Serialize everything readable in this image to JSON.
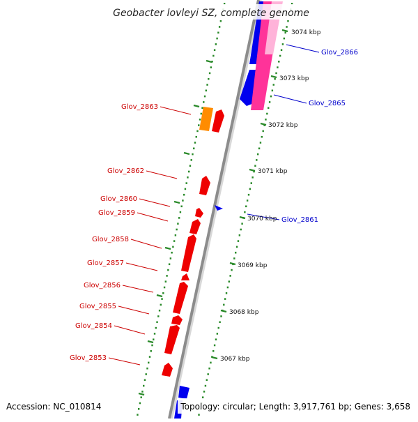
{
  "map": {
    "title": "Geobacter lovleyi SZ, complete genome",
    "accession_text": "Accession: NC_010814",
    "summary_text": "Topology: circular; Length: 3,917,761 bp; Genes: 3,658",
    "kbp_labels": [
      "3074 kbp",
      "3073 kbp",
      "3072 kbp",
      "3071 kbp",
      "3070 kbp",
      "3069 kbp",
      "3068 kbp",
      "3067 kbp"
    ],
    "reverse_genes": [
      "Glov_2863",
      "Glov_2862",
      "Glov_2860",
      "Glov_2859",
      "Glov_2858",
      "Glov_2857",
      "Glov_2856",
      "Glov_2855",
      "Glov_2854",
      "Glov_2853"
    ],
    "forward_genes": [
      "Glov_2866",
      "Glov_2865",
      "Glov_2861"
    ],
    "colors": {
      "backbone": "#8c8c8c",
      "tick": "#2a8a2a",
      "forward_gene": "#0000ee",
      "reverse_gene": "#ee0000",
      "highlight_pink": "#ff3399",
      "highlight_light_pink": "#ffb3d9",
      "highlight_orange": "#ff8c00",
      "forward_label": "#0000cc",
      "reverse_label": "#cc0000"
    }
  }
}
